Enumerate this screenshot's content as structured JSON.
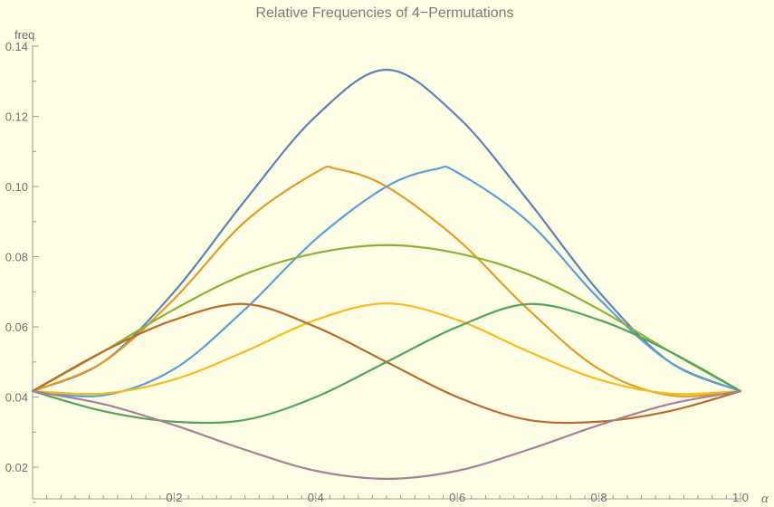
{
  "chart_data": {
    "type": "line",
    "title": "Relative Frequencies of 4−Permutations",
    "xlabel": "α",
    "ylabel": "freq",
    "xlim": [
      0,
      1
    ],
    "ylim": [
      0.011,
      0.14
    ],
    "xticks": [
      "0.2",
      "0.4",
      "0.6",
      "0.8",
      "1.0"
    ],
    "yticks": [
      "0.02",
      "0.04",
      "0.06",
      "0.08",
      "0.10",
      "0.12",
      "0.14"
    ],
    "grid": false,
    "series": [
      {
        "color": "#5e81b5",
        "x": [
          0,
          0.1,
          0.2,
          0.3,
          0.4,
          0.5,
          0.6,
          0.7,
          0.8,
          0.9,
          1.0
        ],
        "y": [
          0.0417,
          0.05,
          0.07,
          0.096,
          0.12,
          0.1333,
          0.12,
          0.096,
          0.07,
          0.05,
          0.0417
        ]
      },
      {
        "color": "#e19c24",
        "x": [
          0,
          0.1,
          0.2,
          0.3,
          0.4,
          0.43,
          0.5,
          0.6,
          0.7,
          0.8,
          0.9,
          1.0
        ],
        "y": [
          0.0417,
          0.05,
          0.068,
          0.09,
          0.104,
          0.105,
          0.1,
          0.085,
          0.065,
          0.048,
          0.0405,
          0.0417
        ]
      },
      {
        "color": "#5a9fd6",
        "x": [
          0,
          0.1,
          0.2,
          0.3,
          0.4,
          0.5,
          0.57,
          0.6,
          0.7,
          0.8,
          0.9,
          1.0
        ],
        "y": [
          0.0417,
          0.0405,
          0.048,
          0.065,
          0.085,
          0.1,
          0.105,
          0.104,
          0.09,
          0.068,
          0.05,
          0.0417
        ]
      },
      {
        "color": "#8fb032",
        "x": [
          0,
          0.1,
          0.2,
          0.3,
          0.4,
          0.5,
          0.6,
          0.7,
          0.8,
          0.9,
          1.0
        ],
        "y": [
          0.0417,
          0.053,
          0.065,
          0.075,
          0.081,
          0.0833,
          0.081,
          0.075,
          0.065,
          0.053,
          0.0417
        ]
      },
      {
        "color": "#f5bc1a",
        "x": [
          0,
          0.1,
          0.2,
          0.3,
          0.4,
          0.5,
          0.6,
          0.7,
          0.8,
          0.9,
          1.0
        ],
        "y": [
          0.0417,
          0.041,
          0.045,
          0.053,
          0.062,
          0.0667,
          0.062,
          0.053,
          0.045,
          0.041,
          0.0417
        ]
      },
      {
        "color": "#b96b2a",
        "x": [
          0,
          0.1,
          0.2,
          0.3,
          0.4,
          0.5,
          0.6,
          0.7,
          0.8,
          0.9,
          1.0
        ],
        "y": [
          0.0417,
          0.053,
          0.062,
          0.0665,
          0.06,
          0.05,
          0.04,
          0.0335,
          0.033,
          0.036,
          0.0417
        ]
      },
      {
        "color": "#52a35c",
        "x": [
          0,
          0.1,
          0.2,
          0.3,
          0.4,
          0.5,
          0.6,
          0.7,
          0.8,
          0.9,
          1.0
        ],
        "y": [
          0.0417,
          0.036,
          0.033,
          0.0335,
          0.04,
          0.05,
          0.06,
          0.0665,
          0.062,
          0.053,
          0.0417
        ]
      },
      {
        "color": "#a87f9a",
        "x": [
          0,
          0.1,
          0.2,
          0.3,
          0.4,
          0.5,
          0.6,
          0.7,
          0.8,
          0.9,
          1.0
        ],
        "y": [
          0.0417,
          0.038,
          0.032,
          0.025,
          0.019,
          0.0167,
          0.019,
          0.025,
          0.032,
          0.038,
          0.0417
        ]
      }
    ]
  }
}
